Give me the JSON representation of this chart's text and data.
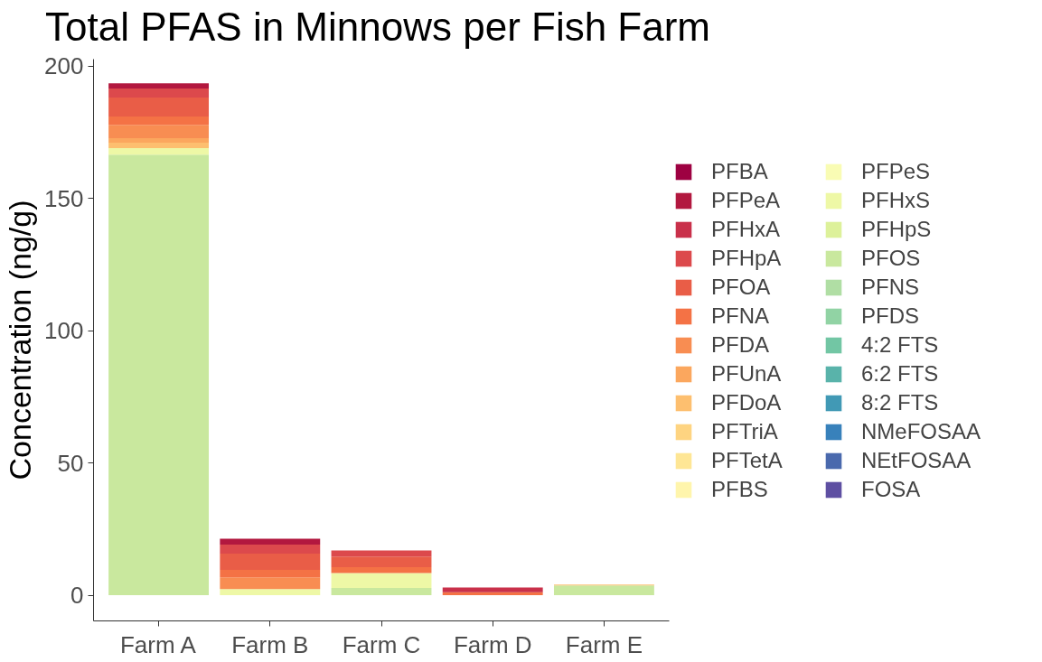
{
  "chart_data": {
    "type": "bar",
    "title": "Total PFAS in Minnows per Fish Farm",
    "ylabel": "Concentration (ng/g)",
    "categories": [
      "Farm A",
      "Farm B",
      "Farm C",
      "Farm D",
      "Farm E"
    ],
    "stacked": true,
    "ylim": [
      -9.7,
      202.6
    ],
    "yticks": [
      0,
      50,
      100,
      150,
      200
    ],
    "grid": false,
    "legend": "right",
    "series": [
      {
        "name": "FOSA",
        "color": "#5e4fa2",
        "values": [
          null,
          null,
          null,
          null,
          null
        ]
      },
      {
        "name": "NEtFOSAA",
        "color": "#4a69ad",
        "values": [
          null,
          null,
          null,
          null,
          null
        ]
      },
      {
        "name": "NMeFOSAA",
        "color": "#3881bb",
        "values": [
          null,
          null,
          null,
          null,
          null
        ]
      },
      {
        "name": "8:2 FTS",
        "color": "#4199b5",
        "values": [
          null,
          null,
          null,
          null,
          null
        ]
      },
      {
        "name": "6:2 FTS",
        "color": "#59b3aa",
        "values": [
          null,
          null,
          null,
          null,
          null
        ]
      },
      {
        "name": "4:2 FTS",
        "color": "#72c6a4",
        "values": [
          null,
          null,
          null,
          null,
          null
        ]
      },
      {
        "name": "PFDS",
        "color": "#91d3a4",
        "values": [
          null,
          null,
          null,
          null,
          null
        ]
      },
      {
        "name": "PFNS",
        "color": "#b0dea4",
        "values": [
          null,
          null,
          null,
          null,
          null
        ]
      },
      {
        "name": "PFOS",
        "color": "#c9e89e",
        "values": [
          166.5,
          null,
          2.8,
          null,
          3.7
        ]
      },
      {
        "name": "PFHpS",
        "color": "#ddf19a",
        "values": [
          null,
          null,
          null,
          null,
          null
        ]
      },
      {
        "name": "PFHxS",
        "color": "#eef8a6",
        "values": [
          2.5,
          2.3,
          5.6,
          null,
          null
        ]
      },
      {
        "name": "PFPeS",
        "color": "#f9fcb4",
        "values": [
          null,
          null,
          null,
          null,
          null
        ]
      },
      {
        "name": "PFBS",
        "color": "#fff5ac",
        "values": [
          null,
          null,
          null,
          null,
          null
        ]
      },
      {
        "name": "PFTetA",
        "color": "#fee695",
        "values": [
          null,
          null,
          null,
          null,
          null
        ]
      },
      {
        "name": "PFTriA",
        "color": "#fed481",
        "values": [
          null,
          null,
          null,
          null,
          null
        ]
      },
      {
        "name": "PFDoA",
        "color": "#fdbf6f",
        "values": [
          2.0,
          null,
          null,
          null,
          0.3
        ]
      },
      {
        "name": "PFUnA",
        "color": "#fba75e",
        "values": [
          1.7,
          null,
          null,
          null,
          null
        ]
      },
      {
        "name": "PFDA",
        "color": "#f88d52",
        "values": [
          5.1,
          4.5,
          null,
          null,
          null
        ]
      },
      {
        "name": "PFNA",
        "color": "#f47245",
        "values": [
          3.1,
          2.8,
          2.2,
          1.1,
          null
        ]
      },
      {
        "name": "PFOA",
        "color": "#e95d47",
        "values": [
          7.2,
          6.1,
          4.0,
          null,
          null
        ]
      },
      {
        "name": "PFHpA",
        "color": "#dc494c",
        "values": [
          3.4,
          3.4,
          2.3,
          null,
          null
        ]
      },
      {
        "name": "PFHxA",
        "color": "#c9304a",
        "values": [
          null,
          null,
          null,
          1.8,
          null
        ]
      },
      {
        "name": "PFPeA",
        "color": "#b2183f",
        "values": [
          2.0,
          2.3,
          null,
          null,
          null
        ]
      },
      {
        "name": "PFBA",
        "color": "#9e0142",
        "values": [
          null,
          null,
          null,
          null,
          null
        ]
      }
    ]
  }
}
